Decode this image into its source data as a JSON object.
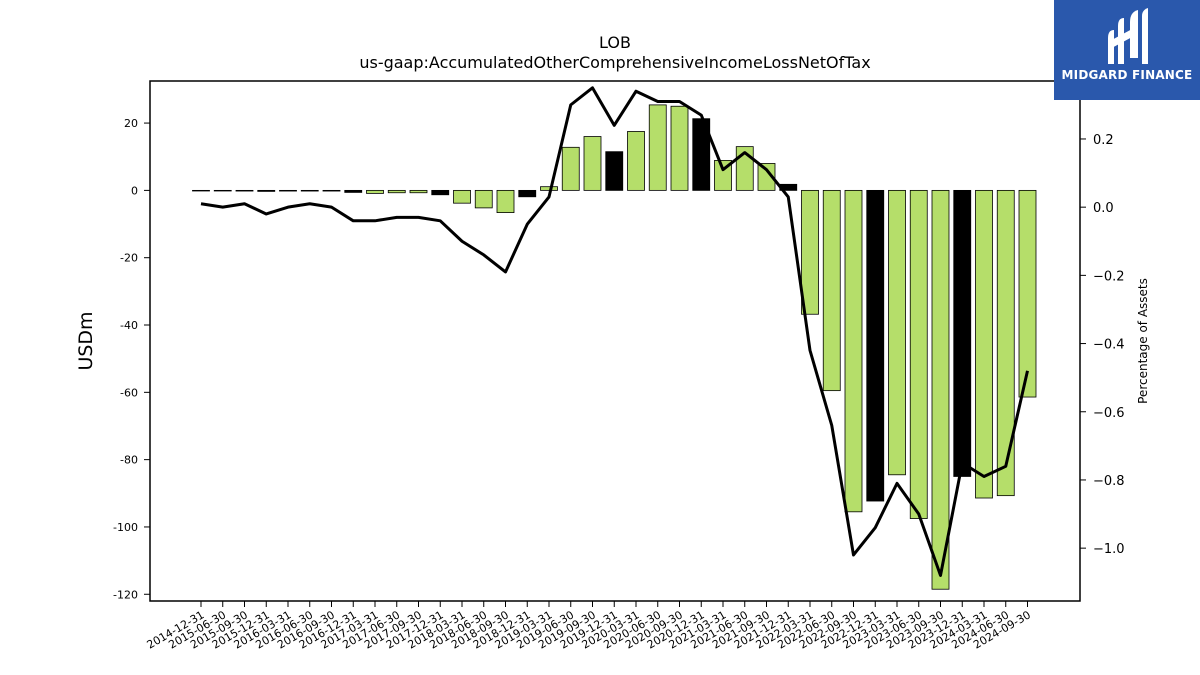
{
  "logo": {
    "text": "MIDGARD FINANCE"
  },
  "chart_data": {
    "type": "bar",
    "title": "LOB",
    "subtitle": "us-gaap:AccumulatedOtherComprehensiveIncomeLossNetOfTax",
    "ylabel": "USDm",
    "y2label": "Percentage of Assets",
    "ylim": [
      -122,
      32.5
    ],
    "y2lim": [
      -1.155,
      0.37
    ],
    "yticks": [
      20,
      0,
      -20,
      -40,
      -60,
      -80,
      -100,
      -120
    ],
    "y2ticks": [
      0.2,
      0.0,
      -0.2,
      -0.4,
      -0.6,
      -0.8,
      -1.0
    ],
    "y2tick_labels": [
      "0.2",
      "0.0",
      "−0.2",
      "−0.4",
      "−0.6",
      "−0.8",
      "−1.0"
    ],
    "categories": [
      "2014-12-31",
      "2015-06-30",
      "2015-09-30",
      "2015-12-31",
      "2016-03-31",
      "2016-06-30",
      "2016-09-30",
      "2016-12-31",
      "2017-03-31",
      "2017-06-30",
      "2017-09-30",
      "2017-12-31",
      "2018-03-31",
      "2018-06-30",
      "2018-09-30",
      "2018-12-31",
      "2019-03-31",
      "2019-06-30",
      "2019-09-30",
      "2019-12-31",
      "2020-03-31",
      "2020-06-30",
      "2020-09-30",
      "2020-12-31",
      "2021-03-31",
      "2021-06-30",
      "2021-09-30",
      "2021-12-31",
      "2022-03-31",
      "2022-06-30",
      "2022-09-30",
      "2022-12-31",
      "2023-03-31",
      "2023-06-30",
      "2023-09-30",
      "2023-12-31",
      "2024-03-31",
      "2024-06-30",
      "2024-09-30"
    ],
    "grid": false,
    "legend": "none",
    "series": [
      {
        "kind": "bar",
        "axis": "left",
        "values": [
          -0.1,
          -0.1,
          -0.2,
          -0.3,
          -0.2,
          -0.2,
          -0.2,
          -0.6,
          -0.9,
          -0.7,
          -0.7,
          -1.3,
          -3.8,
          -5.2,
          -6.6,
          -1.9,
          1.1,
          12.8,
          16.0,
          11.5,
          17.5,
          25.4,
          25.0,
          21.3,
          8.9,
          13.0,
          8.0,
          1.8,
          -36.8,
          -59.5,
          -95.5,
          -92.3,
          -84.5,
          -97.5,
          -118.5,
          -85.0,
          -91.4,
          -90.7,
          -61.4
        ],
        "fourth_quarter_color": "#000000",
        "other_color": "#b5de6a"
      },
      {
        "kind": "line",
        "axis": "right",
        "color": "#000000",
        "values": [
          0.01,
          0.0,
          0.01,
          -0.02,
          0.0,
          0.01,
          0.0,
          -0.04,
          -0.04,
          -0.03,
          -0.03,
          -0.04,
          -0.1,
          -0.14,
          -0.19,
          -0.05,
          0.03,
          0.3,
          0.35,
          0.24,
          0.34,
          0.31,
          0.31,
          0.27,
          0.11,
          0.16,
          0.11,
          0.03,
          -0.42,
          -0.64,
          -1.02,
          -0.94,
          -0.81,
          -0.9,
          -1.08,
          -0.75,
          -0.79,
          -0.76,
          -0.48
        ]
      }
    ]
  }
}
